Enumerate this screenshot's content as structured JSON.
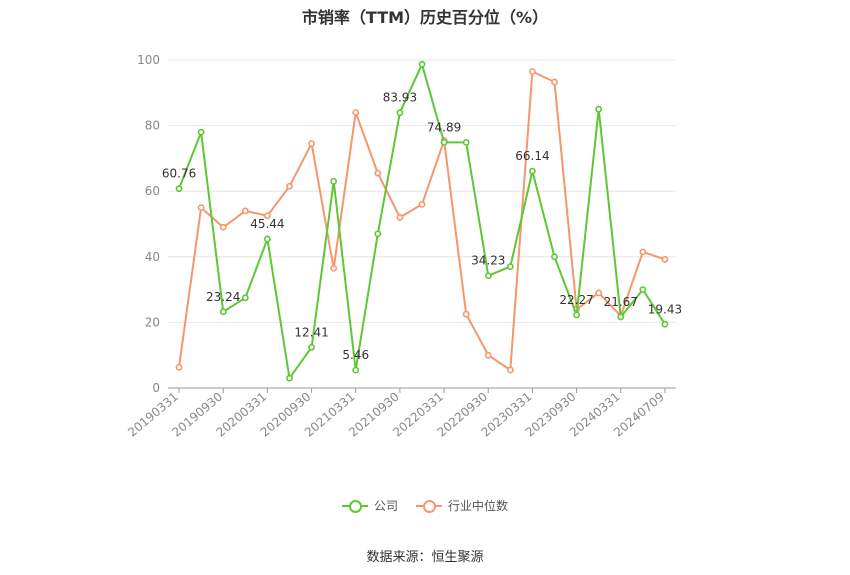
{
  "title": "市销率（TTM）历史百分位（%）",
  "source": "数据来源：恒生聚源",
  "chart_data": {
    "type": "line",
    "ylim": [
      0,
      100
    ],
    "yticks": [
      0,
      20,
      40,
      60,
      80,
      100
    ],
    "x_tick_labels": [
      "20190331",
      "20190930",
      "20200331",
      "20200930",
      "20210331",
      "20210930",
      "20220331",
      "20220930",
      "20230331",
      "20230930",
      "20240331",
      "20240709"
    ],
    "grid": true,
    "legend_position": "bottom",
    "series": [
      {
        "name": "公司",
        "color": "#5ec734",
        "values": [
          60.76,
          78,
          23.24,
          27.5,
          45.44,
          3,
          12.41,
          63,
          5.46,
          47,
          83.93,
          98.7,
          74.89,
          74.89,
          34.23,
          37,
          66.14,
          40,
          22.27,
          85,
          21.67,
          30,
          19.43
        ],
        "labels": {
          "0": "60.76",
          "2": "23.24",
          "4": "45.44",
          "6": "12.41",
          "8": "5.46",
          "10": "83.93",
          "12": "74.89",
          "14": "34.23",
          "16": "66.14",
          "18": "22.27",
          "20": "21.67",
          "22": "19.43"
        }
      },
      {
        "name": "行业中位数",
        "color": "#f4976c",
        "values": [
          6.3,
          55,
          49,
          54,
          52.5,
          61.5,
          74.5,
          36.5,
          84,
          65.5,
          52,
          56,
          75.5,
          22.5,
          10,
          5.5,
          96.5,
          93.3,
          24,
          29,
          22,
          41.5,
          39.2
        ]
      }
    ]
  }
}
